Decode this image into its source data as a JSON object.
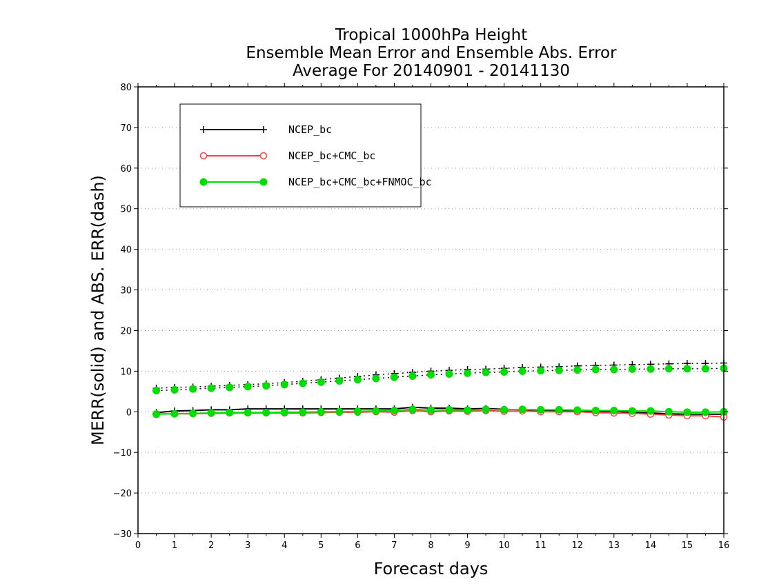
{
  "chart_data": {
    "type": "line",
    "title": [
      "Tropical 1000hPa Height",
      "Ensemble Mean Error and Ensemble Abs. Error",
      "Average For 20140901 - 20141130"
    ],
    "xlabel": "Forecast days",
    "ylabel": "MERR(solid) and ABS. ERR(dash)",
    "xlim": [
      0,
      16
    ],
    "ylim": [
      -30,
      80
    ],
    "xticks": [
      "0",
      "1",
      "2",
      "3",
      "4",
      "5",
      "6",
      "7",
      "8",
      "9",
      "10",
      "11",
      "12",
      "13",
      "14",
      "15",
      "16"
    ],
    "yticks": [
      "80",
      "70",
      "60",
      "50",
      "40",
      "30",
      "20",
      "10",
      "0",
      "−10",
      "−20",
      "−30"
    ],
    "grid": "horizontal dotted",
    "legend_placement": "top-left",
    "x": [
      0.5,
      1,
      1.5,
      2,
      2.5,
      3,
      3.5,
      4,
      4.5,
      5,
      5.5,
      6,
      6.5,
      7,
      7.5,
      8,
      8.5,
      9,
      9.5,
      10,
      10.5,
      11,
      11.5,
      12,
      12.5,
      13,
      13.5,
      14,
      14.5,
      15,
      15.5,
      16
    ],
    "series": [
      {
        "name": "NCEP_bc",
        "color": "#000000",
        "marker": "plus",
        "merr": [
          -0.2,
          0.2,
          0.3,
          0.5,
          0.5,
          0.7,
          0.7,
          0.7,
          0.7,
          0.7,
          0.7,
          0.7,
          0.7,
          0.7,
          1.1,
          0.9,
          0.9,
          0.7,
          0.8,
          0.6,
          0.5,
          0.4,
          0.3,
          0.2,
          0.0,
          0.1,
          -0.2,
          -0.3,
          -0.5,
          -0.6,
          -0.6,
          -0.6
        ],
        "abs_err": [
          5.8,
          6.0,
          6.1,
          6.3,
          6.5,
          6.7,
          6.9,
          7.2,
          7.5,
          7.9,
          8.3,
          8.7,
          9.1,
          9.4,
          9.7,
          10.0,
          10.2,
          10.4,
          10.5,
          10.7,
          10.9,
          11.0,
          11.1,
          11.3,
          11.4,
          11.5,
          11.6,
          11.7,
          11.8,
          11.9,
          11.9,
          12.0
        ]
      },
      {
        "name": "NCEP_bc+CMC_bc",
        "color": "#ff4040",
        "marker": "open-circle",
        "merr": [
          -0.5,
          -0.5,
          -0.5,
          -0.4,
          -0.3,
          -0.3,
          -0.3,
          -0.3,
          -0.3,
          -0.2,
          -0.1,
          -0.1,
          0.0,
          -0.1,
          0.3,
          0.0,
          0.2,
          0.1,
          0.3,
          0.1,
          0.2,
          0.0,
          0.0,
          0.0,
          -0.2,
          -0.3,
          -0.4,
          -0.6,
          -0.8,
          -1.0,
          -1.0,
          -1.3
        ]
      },
      {
        "name": "NCEP_bc+CMC_bc+FNMOC_bc",
        "color": "#00dd00",
        "marker": "filled-circle",
        "merr": [
          -0.6,
          -0.5,
          -0.4,
          -0.3,
          -0.2,
          -0.2,
          -0.2,
          -0.1,
          -0.1,
          0.0,
          0.0,
          0.1,
          0.2,
          0.3,
          0.6,
          0.4,
          0.5,
          0.4,
          0.6,
          0.5,
          0.6,
          0.5,
          0.5,
          0.4,
          0.3,
          0.3,
          0.2,
          0.2,
          0.0,
          -0.1,
          -0.1,
          0.0
        ],
        "abs_err": [
          5.2,
          5.4,
          5.6,
          5.8,
          6.0,
          6.2,
          6.4,
          6.7,
          7.0,
          7.3,
          7.6,
          7.9,
          8.2,
          8.5,
          8.8,
          9.1,
          9.3,
          9.5,
          9.7,
          9.8,
          10.0,
          10.1,
          10.2,
          10.3,
          10.4,
          10.4,
          10.5,
          10.5,
          10.6,
          10.6,
          10.6,
          10.7
        ]
      }
    ]
  }
}
